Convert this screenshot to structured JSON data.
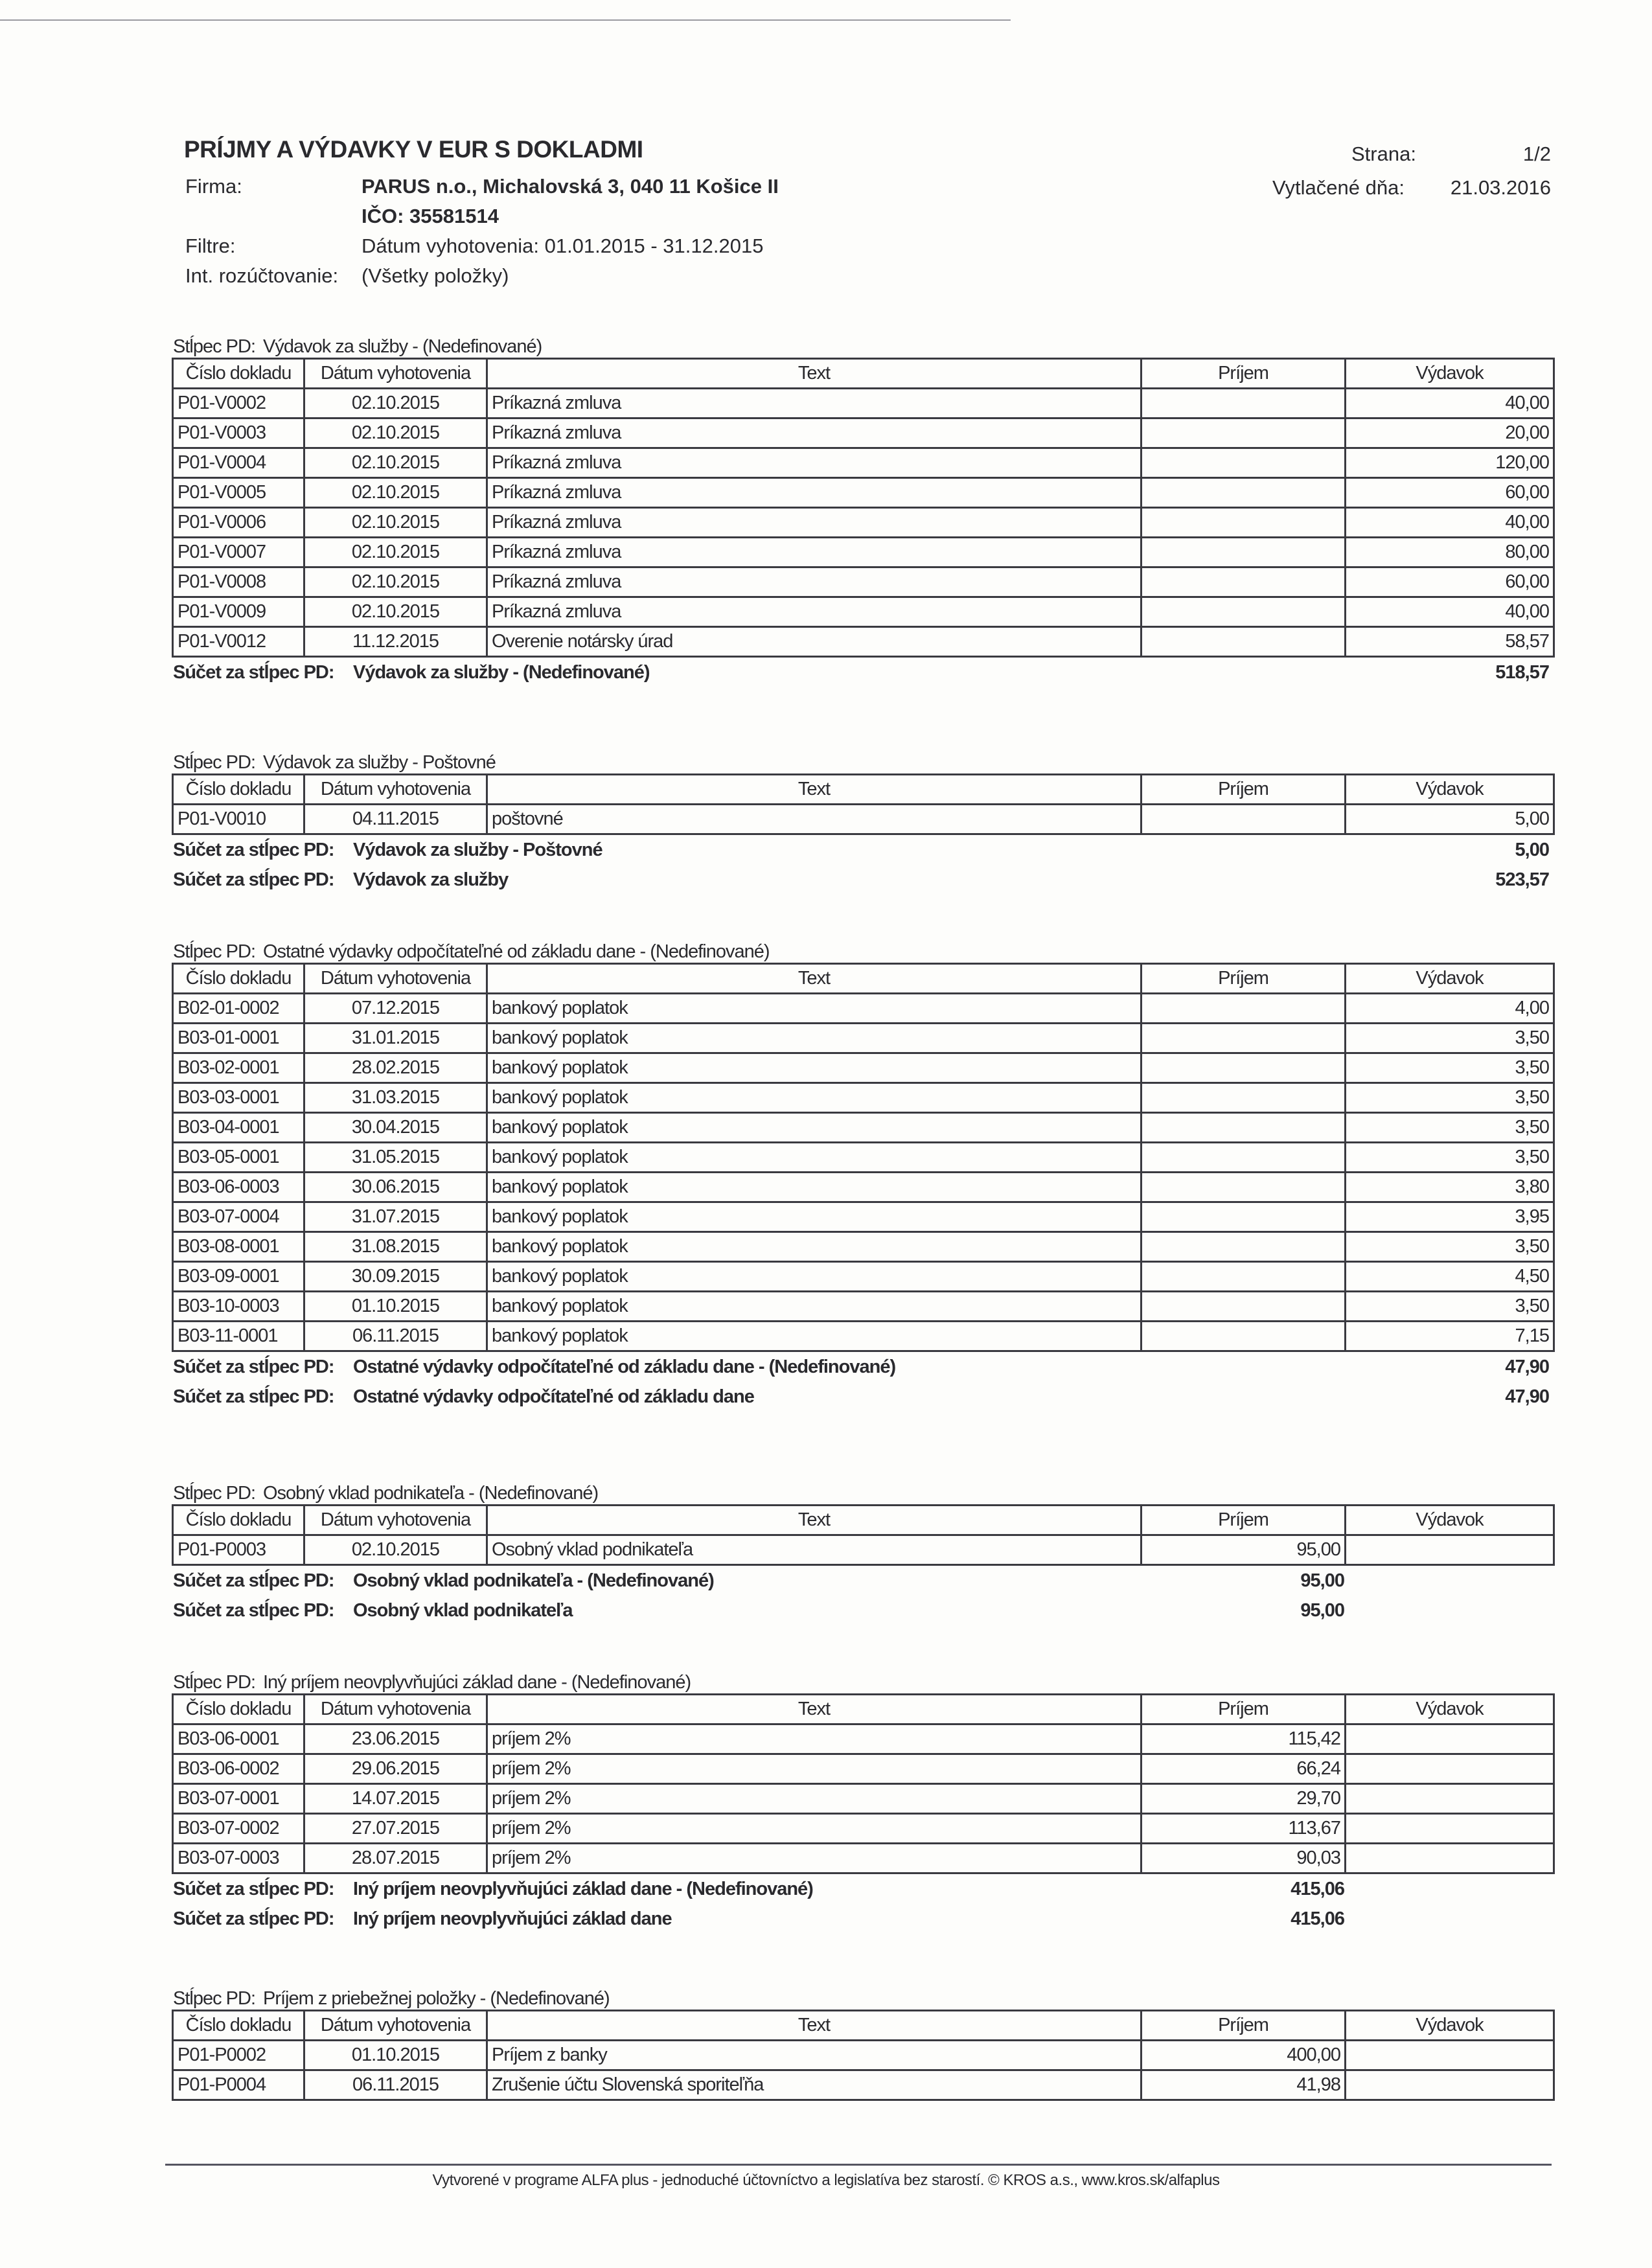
{
  "report": {
    "title": "PRÍJMY A VÝDAVKY V EUR S DOKLADMI",
    "firma_label": "Firma:",
    "firma_value": "PARUS n.o., Michalovská 3, 040 11 Košice II",
    "ico": "IČO: 35581514",
    "filtre_label": "Filtre:",
    "filtre_value": "Dátum vyhotovenia: 01.01.2015 - 31.12.2015",
    "rozuctovanie_label": "Int. rozúčtovanie:",
    "rozuctovanie_value": "(Všetky položky)",
    "strana_label": "Strana:",
    "strana_value": "1/2",
    "vytlacene_label": "Vytlačené dňa:",
    "vytlacene_value": "21.03.2016"
  },
  "columns": [
    "Číslo dokladu",
    "Dátum vyhotovenia",
    "Text",
    "Príjem",
    "Výdavok"
  ],
  "sections": [
    {
      "caption_label": "Stĺpec PD:",
      "caption": "Výdavok za služby - (Nedefinované)",
      "rows": [
        [
          "P01-V0002",
          "02.10.2015",
          "Príkazná zmluva",
          "",
          "40,00"
        ],
        [
          "P01-V0003",
          "02.10.2015",
          "Príkazná zmluva",
          "",
          "20,00"
        ],
        [
          "P01-V0004",
          "02.10.2015",
          "Príkazná zmluva",
          "",
          "120,00"
        ],
        [
          "P01-V0005",
          "02.10.2015",
          "Príkazná zmluva",
          "",
          "60,00"
        ],
        [
          "P01-V0006",
          "02.10.2015",
          "Príkazná zmluva",
          "",
          "40,00"
        ],
        [
          "P01-V0007",
          "02.10.2015",
          "Príkazná zmluva",
          "",
          "80,00"
        ],
        [
          "P01-V0008",
          "02.10.2015",
          "Príkazná zmluva",
          "",
          "60,00"
        ],
        [
          "P01-V0009",
          "02.10.2015",
          "Príkazná zmluva",
          "",
          "40,00"
        ],
        [
          "P01-V0012",
          "11.12.2015",
          "Overenie notársky úrad",
          "",
          "58,57"
        ]
      ],
      "sums": [
        {
          "label": "Súčet za stĺpec PD:",
          "title": "Výdavok za služby - (Nedefinované)",
          "value": "518,57",
          "column": "vydavok"
        }
      ]
    },
    {
      "caption_label": "Stĺpec PD:",
      "caption": "Výdavok za služby - Poštovné",
      "rows": [
        [
          "P01-V0010",
          "04.11.2015",
          "poštovné",
          "",
          "5,00"
        ]
      ],
      "sums": [
        {
          "label": "Súčet za stĺpec PD:",
          "title": "Výdavok za služby - Poštovné",
          "value": "5,00",
          "column": "vydavok"
        },
        {
          "label": "Súčet za stĺpec PD:",
          "title": "Výdavok za služby",
          "value": "523,57",
          "column": "vydavok"
        }
      ]
    },
    {
      "caption_label": "Stĺpec PD:",
      "caption": "Ostatné výdavky odpočítateľné od základu dane - (Nedefinované)",
      "rows": [
        [
          "B02-01-0002",
          "07.12.2015",
          "bankový poplatok",
          "",
          "4,00"
        ],
        [
          "B03-01-0001",
          "31.01.2015",
          "bankový poplatok",
          "",
          "3,50"
        ],
        [
          "B03-02-0001",
          "28.02.2015",
          "bankový poplatok",
          "",
          "3,50"
        ],
        [
          "B03-03-0001",
          "31.03.2015",
          "bankový poplatok",
          "",
          "3,50"
        ],
        [
          "B03-04-0001",
          "30.04.2015",
          "bankový poplatok",
          "",
          "3,50"
        ],
        [
          "B03-05-0001",
          "31.05.2015",
          "bankový poplatok",
          "",
          "3,50"
        ],
        [
          "B03-06-0003",
          "30.06.2015",
          "bankový poplatok",
          "",
          "3,80"
        ],
        [
          "B03-07-0004",
          "31.07.2015",
          "bankový poplatok",
          "",
          "3,95"
        ],
        [
          "B03-08-0001",
          "31.08.2015",
          "bankový poplatok",
          "",
          "3,50"
        ],
        [
          "B03-09-0001",
          "30.09.2015",
          "bankový poplatok",
          "",
          "4,50"
        ],
        [
          "B03-10-0003",
          "01.10.2015",
          "bankový poplatok",
          "",
          "3,50"
        ],
        [
          "B03-11-0001",
          "06.11.2015",
          "bankový poplatok",
          "",
          "7,15"
        ]
      ],
      "sums": [
        {
          "label": "Súčet za stĺpec PD:",
          "title": "Ostatné výdavky odpočítateľné od základu dane - (Nedefinované)",
          "value": "47,90",
          "column": "vydavok"
        },
        {
          "label": "Súčet za stĺpec PD:",
          "title": "Ostatné výdavky odpočítateľné od základu dane",
          "value": "47,90",
          "column": "vydavok"
        }
      ]
    },
    {
      "caption_label": "Stĺpec PD:",
      "caption": "Osobný vklad podnikateľa - (Nedefinované)",
      "rows": [
        [
          "P01-P0003",
          "02.10.2015",
          "Osobný vklad podnikateľa",
          "95,00",
          ""
        ]
      ],
      "sums": [
        {
          "label": "Súčet za stĺpec PD:",
          "title": "Osobný vklad podnikateľa - (Nedefinované)",
          "value": "95,00",
          "column": "prijem"
        },
        {
          "label": "Súčet za stĺpec PD:",
          "title": "Osobný vklad podnikateľa",
          "value": "95,00",
          "column": "prijem"
        }
      ]
    },
    {
      "caption_label": "Stĺpec PD:",
      "caption": "Iný príjem neovplyvňujúci základ dane - (Nedefinované)",
      "rows": [
        [
          "B03-06-0001",
          "23.06.2015",
          "príjem 2%",
          "115,42",
          ""
        ],
        [
          "B03-06-0002",
          "29.06.2015",
          "príjem 2%",
          "66,24",
          ""
        ],
        [
          "B03-07-0001",
          "14.07.2015",
          "príjem 2%",
          "29,70",
          ""
        ],
        [
          "B03-07-0002",
          "27.07.2015",
          "príjem 2%",
          "113,67",
          ""
        ],
        [
          "B03-07-0003",
          "28.07.2015",
          "príjem 2%",
          "90,03",
          ""
        ]
      ],
      "sums": [
        {
          "label": "Súčet za stĺpec PD:",
          "title": "Iný príjem neovplyvňujúci základ dane - (Nedefinované)",
          "value": "415,06",
          "column": "prijem"
        },
        {
          "label": "Súčet za stĺpec PD:",
          "title": "Iný príjem neovplyvňujúci základ dane",
          "value": "415,06",
          "column": "prijem"
        }
      ]
    },
    {
      "caption_label": "Stĺpec PD:",
      "caption": "Príjem z priebežnej položky - (Nedefinované)",
      "rows": [
        [
          "P01-P0002",
          "01.10.2015",
          "Príjem z banky",
          "400,00",
          ""
        ],
        [
          "P01-P0004",
          "06.11.2015",
          "Zrušenie účtu Slovenská sporiteľňa",
          "41,98",
          ""
        ]
      ],
      "sums": []
    }
  ],
  "footer": "Vytvorené v programe ALFA plus - jednoduché účtovníctvo a legislatíva bez starostí. © KROS a.s., www.kros.sk/alfaplus"
}
